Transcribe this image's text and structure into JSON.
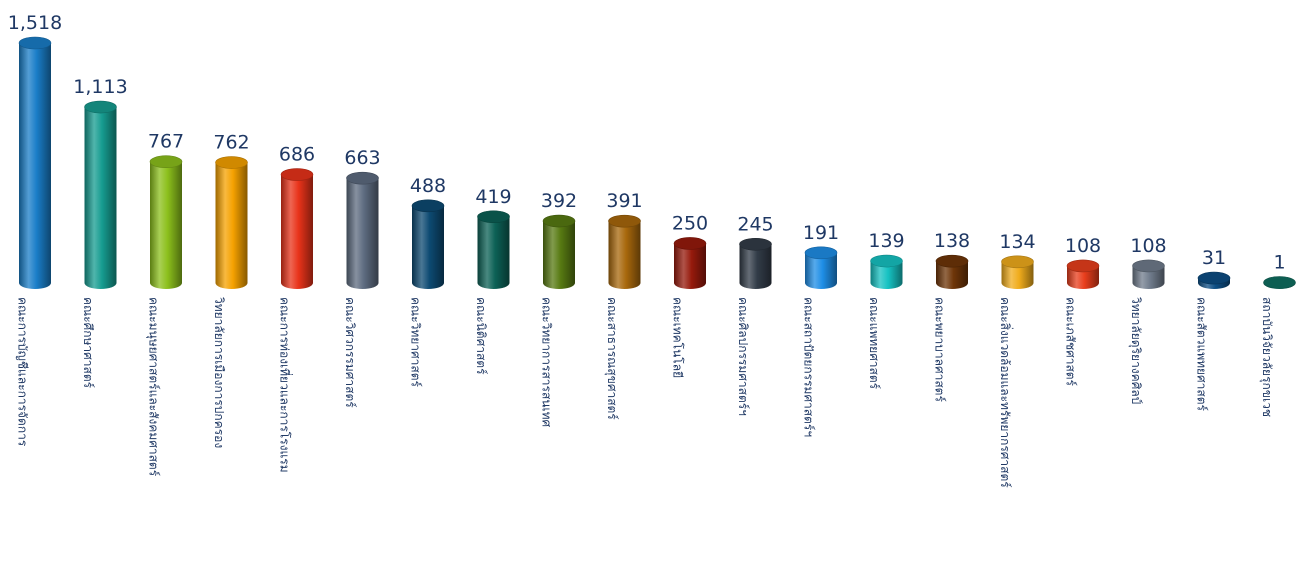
{
  "chart_data": {
    "type": "bar",
    "style": "3d-cylinder",
    "grid": false,
    "legend": "none",
    "ylim": [
      0,
      1600
    ],
    "categories": [
      "คณะการบัญชีและการจัดการ",
      "คณะศึกษาศาสตร์",
      "คณะมนุษยศาสตร์และสังคมศาสตร์",
      "วิทยาลัยการเมืองการปกครอง",
      "คณะการท่องเที่ยวและการโรงแรม",
      "คณะวิศวกรรมศาสตร์",
      "คณะวิทยาศาสตร์",
      "คณะนิติศาสตร์",
      "คณะวิทยาการสารสนเทศ",
      "คณะสาธารณสุขศาสตร์",
      "คณะเทคโนโลยี",
      "คณะศิลปกรรมศาสตร์ฯ",
      "คณะสถาปัตยกรรมศาสตร์ฯ",
      "คณะแพทยศาสตร์",
      "คณะพยาบาลศาสตร์",
      "คณะสิ่งแวดล้อมและทรัพยากรศาสตร์",
      "คณะเภสัชศาสตร์",
      "วิทยาลัยดุริยางคศิลป์",
      "คณะสัตวแพทยศาสตร์",
      "สถาบันวิจัยวลัยรุกขเวช"
    ],
    "values": [
      1518,
      1113,
      767,
      762,
      686,
      663,
      488,
      419,
      392,
      391,
      250,
      245,
      191,
      139,
      138,
      134,
      108,
      108,
      31,
      1
    ],
    "value_labels": [
      "1,518",
      "1,113",
      "767",
      "762",
      "686",
      "663",
      "488",
      "419",
      "392",
      "391",
      "250",
      "245",
      "191",
      "139",
      "138",
      "134",
      "108",
      "108",
      "31",
      "1"
    ],
    "colors": [
      "#1a7ec8",
      "#169c90",
      "#8cc01c",
      "#f5a100",
      "#e8331a",
      "#5d6b80",
      "#0d4a72",
      "#0c6156",
      "#577a12",
      "#a8680c",
      "#961a0c",
      "#323c48",
      "#1e8ee6",
      "#16c2c2",
      "#6e3508",
      "#f0ac1c",
      "#e83e1c",
      "#707c8c",
      "#0d4e84",
      "#0f6e60"
    ]
  }
}
